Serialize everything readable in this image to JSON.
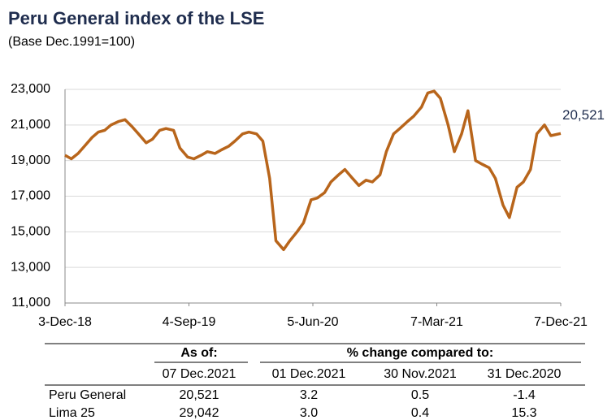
{
  "chart_data": {
    "type": "line",
    "title": "Peru General  index of the LSE",
    "subtitle": "(Base Dec.1991=100)",
    "x": [
      "2018-12-03",
      "2018-12-17",
      "2019-01-01",
      "2019-01-15",
      "2019-02-01",
      "2019-02-15",
      "2019-03-01",
      "2019-03-15",
      "2019-04-01",
      "2019-04-15",
      "2019-05-01",
      "2019-05-15",
      "2019-06-01",
      "2019-06-15",
      "2019-07-01",
      "2019-07-15",
      "2019-08-01",
      "2019-08-15",
      "2019-09-01",
      "2019-09-15",
      "2019-10-01",
      "2019-10-15",
      "2019-11-01",
      "2019-11-15",
      "2019-12-01",
      "2019-12-15",
      "2020-01-01",
      "2020-01-15",
      "2020-02-01",
      "2020-02-15",
      "2020-03-01",
      "2020-03-15",
      "2020-04-01",
      "2020-04-15",
      "2020-05-01",
      "2020-05-15",
      "2020-06-01",
      "2020-06-15",
      "2020-07-01",
      "2020-07-15",
      "2020-08-01",
      "2020-08-15",
      "2020-09-01",
      "2020-09-15",
      "2020-10-01",
      "2020-10-15",
      "2020-11-01",
      "2020-11-15",
      "2020-12-01",
      "2020-12-15",
      "2021-01-01",
      "2021-01-15",
      "2021-02-01",
      "2021-02-15",
      "2021-03-01",
      "2021-03-15",
      "2021-04-01",
      "2021-04-15",
      "2021-05-01",
      "2021-05-15",
      "2021-06-01",
      "2021-06-15",
      "2021-07-01",
      "2021-07-15",
      "2021-08-01",
      "2021-08-15",
      "2021-09-01",
      "2021-09-15",
      "2021-10-01",
      "2021-10-15",
      "2021-11-01",
      "2021-11-15",
      "2021-12-07"
    ],
    "series": [
      {
        "name": "Peru General",
        "color": "#b8651b",
        "values": [
          19300,
          19100,
          19400,
          19800,
          20300,
          20600,
          20700,
          21000,
          21200,
          21300,
          20900,
          20500,
          20000,
          20200,
          20700,
          20800,
          20700,
          19700,
          19200,
          19100,
          19300,
          19500,
          19400,
          19600,
          19800,
          20100,
          20500,
          20600,
          20500,
          20100,
          18000,
          14500,
          14000,
          14500,
          15000,
          15500,
          16800,
          16900,
          17200,
          17800,
          18200,
          18500,
          18000,
          17600,
          17900,
          17800,
          18200,
          19500,
          20500,
          20800,
          21200,
          21500,
          22000,
          22800,
          22900,
          22500,
          21000,
          19500,
          20500,
          21800,
          19000,
          18800,
          18600,
          18000,
          16500,
          15800,
          17500,
          17800,
          18500,
          20500,
          21000,
          20400,
          20521
        ]
      }
    ],
    "xlim": [
      "2018-12-03",
      "2021-12-07"
    ],
    "xticks": [
      {
        "value": "2018-12-03",
        "label": "3-Dec-18"
      },
      {
        "value": "2019-09-04",
        "label": "4-Sep-19"
      },
      {
        "value": "2020-06-05",
        "label": "5-Jun-20"
      },
      {
        "value": "2021-03-07",
        "label": "7-Mar-21"
      },
      {
        "value": "2021-12-07",
        "label": "7-Dec-21"
      }
    ],
    "ylim": [
      11000,
      23000
    ],
    "yticks": [
      {
        "value": 11000,
        "label": "11,000"
      },
      {
        "value": 13000,
        "label": "13,000"
      },
      {
        "value": 15000,
        "label": "15,000"
      },
      {
        "value": 17000,
        "label": "17,000"
      },
      {
        "value": 19000,
        "label": "19,000"
      },
      {
        "value": 21000,
        "label": "21,000"
      },
      {
        "value": 23000,
        "label": "23,000"
      }
    ],
    "grid": true,
    "annotations": [
      {
        "text": "20,521",
        "x": "2021-12-07",
        "y": 20521
      }
    ]
  },
  "table": {
    "group_headers": [
      "As of:",
      "% change compared to:"
    ],
    "columns": [
      "07 Dec.2021",
      "01 Dec.2021",
      "30 Nov.2021",
      "31 Dec.2020"
    ],
    "rows": [
      [
        "Peru General",
        "20,521",
        "3.2",
        "0.5",
        "-1.4"
      ],
      [
        "Lima 25",
        "29,042",
        "3.0",
        "0.4",
        "15.3"
      ]
    ]
  }
}
